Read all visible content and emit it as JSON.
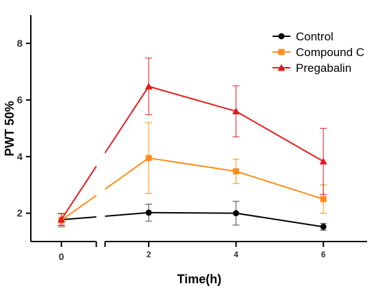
{
  "chart_data": {
    "type": "line",
    "xlabel": "Time(h)",
    "ylabel": "PWT 50%",
    "x": [
      0,
      2,
      4,
      6
    ],
    "xticks": [
      "0",
      "2",
      "4",
      "6"
    ],
    "yticks": [
      "2",
      "4",
      "6",
      "8"
    ],
    "xlim": [
      -0.7,
      7
    ],
    "ylim": [
      1,
      9
    ],
    "axis_break": [
      0.8,
      1.0
    ],
    "legend_position": "top-right",
    "grid": false,
    "series": [
      {
        "name": "Control",
        "color": "#000000",
        "marker": "circle",
        "values": [
          1.77,
          2.02,
          2.0,
          1.52
        ],
        "errors": [
          0.22,
          0.3,
          0.42,
          0.12
        ]
      },
      {
        "name": "Compound C",
        "color": "#ff8c1a",
        "marker": "square",
        "values": [
          1.75,
          3.95,
          3.48,
          2.5
        ],
        "errors": [
          0.25,
          1.25,
          0.43,
          0.5
        ]
      },
      {
        "name": "Pregabalin",
        "color": "#e31a1c",
        "marker": "triangle",
        "values": [
          1.78,
          6.48,
          5.6,
          3.83
        ],
        "errors": [
          0.2,
          1.0,
          0.9,
          1.17
        ]
      }
    ]
  }
}
